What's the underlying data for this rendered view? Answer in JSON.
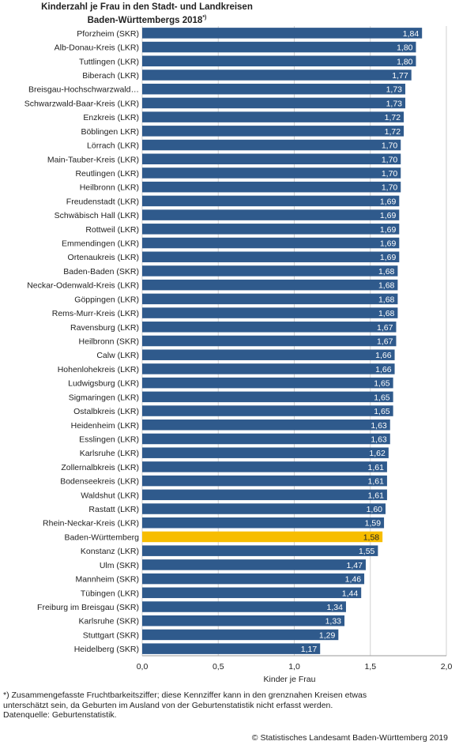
{
  "title_line1": "Kinderzahl je Frau in den Stadt- und Landkreisen",
  "title_line2": "Baden-Württembergs 2018",
  "title_mark": "*)",
  "footnote_line1": "*) Zusammengefasste Fruchtbarkeitsziffer; diese Kennziffer kann in den grenznahen Kreisen etwas",
  "footnote_line2": "unterschätzt sein, da Geburten im Ausland von der Geburtenstatistik nicht erfasst werden.",
  "footnote_line3": "Datenquelle: Geburtenstatistik.",
  "copyright": "© Statistisches Landesamt Baden-Württemberg 2019",
  "chart_data": {
    "type": "bar",
    "orientation": "horizontal",
    "xlabel": "Kinder je Frau",
    "xlim": [
      0,
      2.0
    ],
    "xticks": [
      "0,0",
      "0,5",
      "1,0",
      "1,5",
      "2,0"
    ],
    "grid": "vertical",
    "colors": {
      "bar": "#2f5a8c",
      "highlight": "#f7bd00",
      "grid": "#d0d0d0"
    },
    "highlight": "Baden-Württemberg",
    "categories": [
      "Pforzheim (SKR)",
      "Alb-Donau-Kreis (LKR)",
      "Tuttlingen (LKR)",
      "Biberach (LKR)",
      "Breisgau-Hochschwarzwald…",
      "Schwarzwald-Baar-Kreis (LKR)",
      "Enzkreis (LKR)",
      "Böblingen LKR)",
      "Lörrach (LKR)",
      "Main-Tauber-Kreis (LKR)",
      "Reutlingen (LKR)",
      "Heilbronn (LKR)",
      "Freudenstadt (LKR)",
      "Schwäbisch Hall (LKR)",
      "Rottweil (LKR)",
      "Emmendingen (LKR)",
      "Ortenaukreis (LKR)",
      "Baden-Baden (SKR)",
      "Neckar-Odenwald-Kreis (LKR)",
      "Göppingen (LKR)",
      "Rems-Murr-Kreis  (LKR)",
      "Ravensburg (LKR)",
      "Heilbronn (SKR)",
      "Calw (LKR)",
      "Hohenlohekreis (LKR)",
      "Ludwigsburg (LKR)",
      "Sigmaringen (LKR)",
      "Ostalbkreis (LKR)",
      "Heidenheim (LKR)",
      "Esslingen (LKR)",
      "Karlsruhe (LKR)",
      "Zollernalbkreis (LKR)",
      "Bodenseekreis (LKR)",
      "Waldshut (LKR)",
      "Rastatt (LKR)",
      "Rhein-Neckar-Kreis (LKR)",
      "Baden-Württemberg",
      "Konstanz (LKR)",
      "Ulm (SKR)",
      "Mannheim (SKR)",
      "Tübingen (LKR)",
      "Freiburg im Breisgau (SKR)",
      "Karlsruhe (SKR)",
      "Stuttgart (SKR)",
      "Heidelberg (SKR)"
    ],
    "values": [
      1.84,
      1.8,
      1.8,
      1.77,
      1.73,
      1.73,
      1.72,
      1.72,
      1.7,
      1.7,
      1.7,
      1.7,
      1.69,
      1.69,
      1.69,
      1.69,
      1.69,
      1.68,
      1.68,
      1.68,
      1.68,
      1.67,
      1.67,
      1.66,
      1.66,
      1.65,
      1.65,
      1.65,
      1.63,
      1.63,
      1.62,
      1.61,
      1.61,
      1.61,
      1.6,
      1.59,
      1.58,
      1.55,
      1.47,
      1.46,
      1.44,
      1.34,
      1.33,
      1.29,
      1.17
    ],
    "value_labels": [
      "1,84",
      "1,80",
      "1,80",
      "1,77",
      "1,73",
      "1,73",
      "1,72",
      "1,72",
      "1,70",
      "1,70",
      "1,70",
      "1,70",
      "1,69",
      "1,69",
      "1,69",
      "1,69",
      "1,69",
      "1,68",
      "1,68",
      "1,68",
      "1,68",
      "1,67",
      "1,67",
      "1,66",
      "1,66",
      "1,65",
      "1,65",
      "1,65",
      "1,63",
      "1,63",
      "1,62",
      "1,61",
      "1,61",
      "1,61",
      "1,60",
      "1,59",
      "1,58",
      "1,55",
      "1,47",
      "1,46",
      "1,44",
      "1,34",
      "1,33",
      "1,29",
      "1,17"
    ]
  }
}
